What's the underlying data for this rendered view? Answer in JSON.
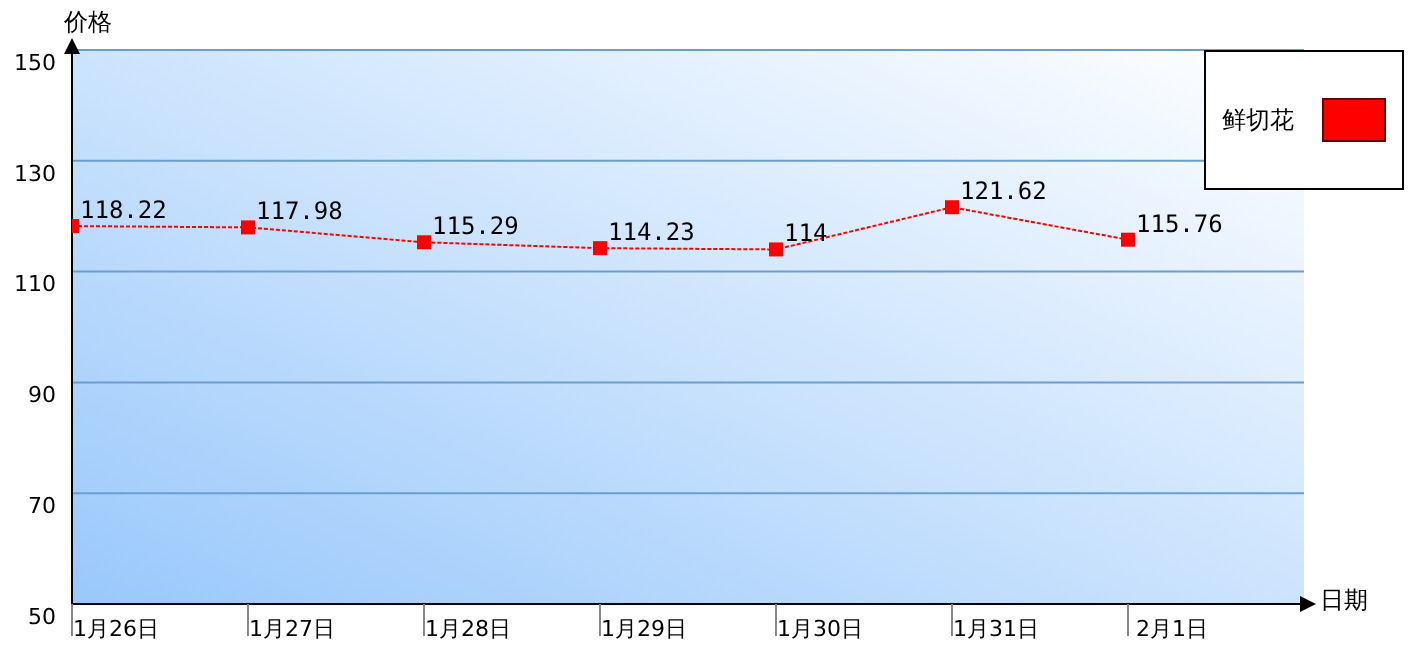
{
  "chart_data": {
    "type": "line",
    "xlabel": "日期",
    "ylabel": "价格",
    "categories": [
      "1月26日",
      "1月27日",
      "1月28日",
      "1月29日",
      "1月30日",
      "1月31日",
      "2月1日"
    ],
    "series": [
      {
        "name": "鲜切花",
        "color": "#ff0000",
        "values": [
          118.22,
          117.98,
          115.29,
          114.23,
          114,
          121.62,
          115.76
        ]
      }
    ],
    "ylim": [
      50,
      150
    ],
    "yticks": [
      50,
      70,
      90,
      110,
      130,
      150
    ],
    "grid": "y",
    "legend": "top right",
    "marker": "square",
    "line_style": "dotted",
    "data_labels": true
  }
}
